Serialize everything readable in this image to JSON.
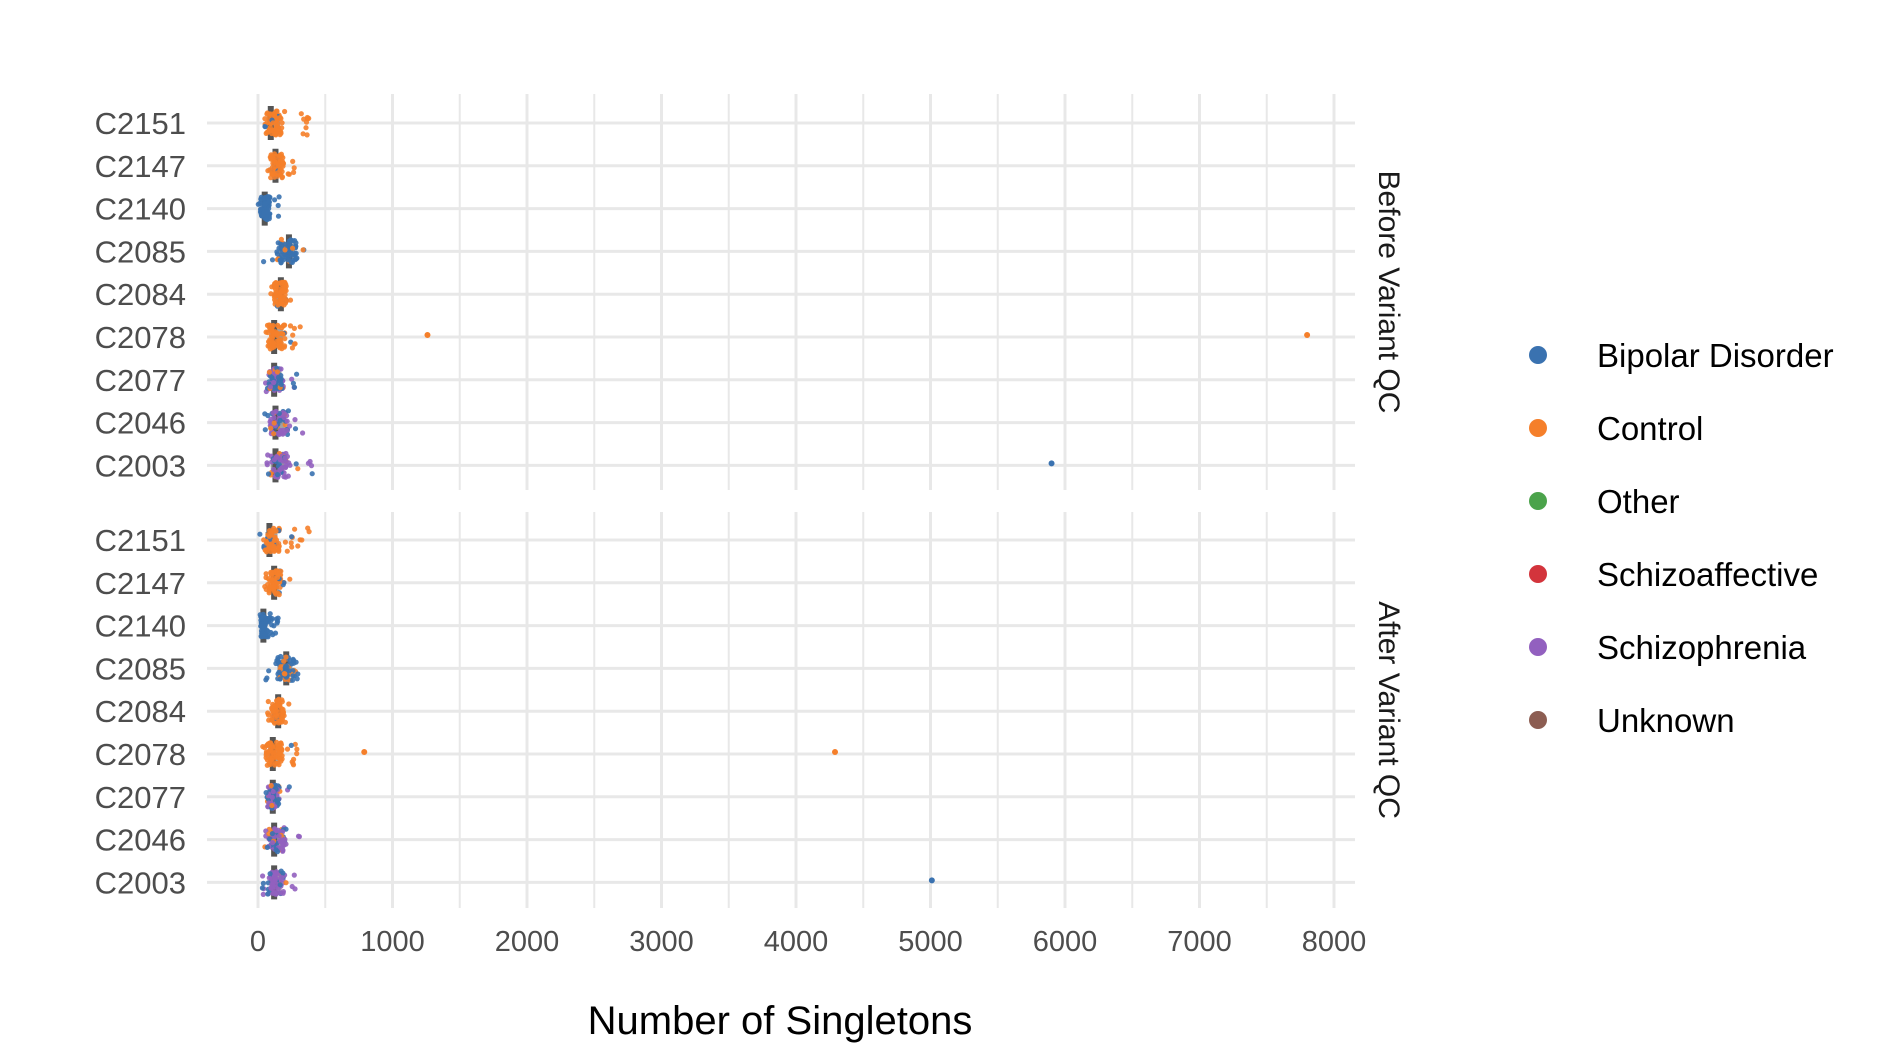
{
  "chart_data": {
    "type": "scatter",
    "subtype": "jittered strip plot with boxplots, faceted",
    "xlabel": "Number of Singletons",
    "ylabel": "",
    "xlim": [
      -350,
      8200
    ],
    "x_ticks": [
      0,
      1000,
      2000,
      3000,
      4000,
      5000,
      6000,
      7000,
      8000
    ],
    "x_tick_labels": [
      "0",
      "1000",
      "2000",
      "3000",
      "4000",
      "5000",
      "6000",
      "7000",
      "8000"
    ],
    "grid": true,
    "categories": [
      "C2003",
      "C2046",
      "C2077",
      "C2078",
      "C2084",
      "C2085",
      "C2140",
      "C2147",
      "C2151"
    ],
    "legend": {
      "placement": "right",
      "entries": [
        {
          "name": "Bipolar Disorder",
          "color": "#3a72b0"
        },
        {
          "name": "Control",
          "color": "#f57f2a"
        },
        {
          "name": "Other",
          "color": "#4ba34b"
        },
        {
          "name": "Schizoaffective",
          "color": "#d3343c"
        },
        {
          "name": "Schizophrenia",
          "color": "#9260bf"
        },
        {
          "name": "Unknown",
          "color": "#8c5d52"
        }
      ]
    },
    "colors": {
      "box": "#555555",
      "grid": "#e8e8e8"
    },
    "facets": [
      {
        "label": "Before Variant QC",
        "groups": [
          {
            "category": "C2151",
            "median": 95,
            "spread": [
              50,
              180
            ],
            "extent": [
              0,
              460
            ],
            "composition": {
              "Control": 0.9,
              "Bipolar Disorder": 0.1
            }
          },
          {
            "category": "C2147",
            "median": 130,
            "spread": [
              90,
              190
            ],
            "extent": [
              60,
              320
            ],
            "composition": {
              "Control": 0.9,
              "Bipolar Disorder": 0.1
            }
          },
          {
            "category": "C2140",
            "median": 50,
            "spread": [
              20,
              90
            ],
            "extent": [
              0,
              170
            ],
            "composition": {
              "Bipolar Disorder": 1.0
            }
          },
          {
            "category": "C2085",
            "median": 230,
            "spread": [
              140,
              290
            ],
            "extent": [
              30,
              370
            ],
            "composition": {
              "Bipolar Disorder": 0.85,
              "Control": 0.15
            }
          },
          {
            "category": "C2084",
            "median": 170,
            "spread": [
              120,
              210
            ],
            "extent": [
              90,
              250
            ],
            "composition": {
              "Control": 0.95,
              "Bipolar Disorder": 0.05
            }
          },
          {
            "category": "C2078",
            "median": 120,
            "spread": [
              70,
              200
            ],
            "extent": [
              40,
              330
            ],
            "composition": {
              "Control": 0.95,
              "Bipolar Disorder": 0.05
            }
          },
          {
            "category": "C2077",
            "median": 120,
            "spread": [
              80,
              190
            ],
            "extent": [
              50,
              290
            ],
            "composition": {
              "Bipolar Disorder": 0.5,
              "Schizophrenia": 0.4,
              "Control": 0.1
            }
          },
          {
            "category": "C2046",
            "median": 130,
            "spread": [
              90,
              220
            ],
            "extent": [
              50,
              360
            ],
            "composition": {
              "Schizophrenia": 0.6,
              "Bipolar Disorder": 0.25,
              "Control": 0.15
            }
          },
          {
            "category": "C2003",
            "median": 130,
            "spread": [
              80,
              210
            ],
            "extent": [
              40,
              420
            ],
            "composition": {
              "Schizophrenia": 0.75,
              "Bipolar Disorder": 0.2,
              "Control": 0.05
            }
          }
        ],
        "outliers": [
          {
            "category": "C2078",
            "x": 1260,
            "group": "Control"
          },
          {
            "category": "C2078",
            "x": 7800,
            "group": "Control"
          },
          {
            "category": "C2003",
            "x": 5900,
            "group": "Bipolar Disorder"
          }
        ]
      },
      {
        "label": "After Variant QC",
        "groups": [
          {
            "category": "C2151",
            "median": 85,
            "spread": [
              40,
              160
            ],
            "extent": [
              0,
              380
            ],
            "composition": {
              "Control": 0.9,
              "Bipolar Disorder": 0.1
            }
          },
          {
            "category": "C2147",
            "median": 120,
            "spread": [
              80,
              170
            ],
            "extent": [
              50,
              270
            ],
            "composition": {
              "Control": 0.9,
              "Bipolar Disorder": 0.1
            }
          },
          {
            "category": "C2140",
            "median": 40,
            "spread": [
              15,
              80
            ],
            "extent": [
              0,
              150
            ],
            "composition": {
              "Bipolar Disorder": 1.0
            }
          },
          {
            "category": "C2085",
            "median": 210,
            "spread": [
              130,
              270
            ],
            "extent": [
              30,
              330
            ],
            "composition": {
              "Bipolar Disorder": 0.85,
              "Control": 0.15
            }
          },
          {
            "category": "C2084",
            "median": 150,
            "spread": [
              100,
              190
            ],
            "extent": [
              70,
              230
            ],
            "composition": {
              "Control": 0.95,
              "Bipolar Disorder": 0.05
            }
          },
          {
            "category": "C2078",
            "median": 110,
            "spread": [
              60,
              180
            ],
            "extent": [
              30,
              300
            ],
            "composition": {
              "Control": 0.95,
              "Bipolar Disorder": 0.05
            }
          },
          {
            "category": "C2077",
            "median": 110,
            "spread": [
              70,
              170
            ],
            "extent": [
              40,
              260
            ],
            "composition": {
              "Bipolar Disorder": 0.5,
              "Schizophrenia": 0.4,
              "Control": 0.1
            }
          },
          {
            "category": "C2046",
            "median": 120,
            "spread": [
              80,
              200
            ],
            "extent": [
              40,
              320
            ],
            "composition": {
              "Schizophrenia": 0.6,
              "Bipolar Disorder": 0.25,
              "Control": 0.15
            }
          },
          {
            "category": "C2003",
            "median": 120,
            "spread": [
              70,
              190
            ],
            "extent": [
              30,
              300
            ],
            "composition": {
              "Schizophrenia": 0.75,
              "Bipolar Disorder": 0.2,
              "Control": 0.05
            }
          }
        ],
        "outliers": [
          {
            "category": "C2078",
            "x": 790,
            "group": "Control"
          },
          {
            "category": "C2078",
            "x": 4290,
            "group": "Control"
          },
          {
            "category": "C2003",
            "x": 5010,
            "group": "Bipolar Disorder"
          }
        ]
      }
    ]
  }
}
